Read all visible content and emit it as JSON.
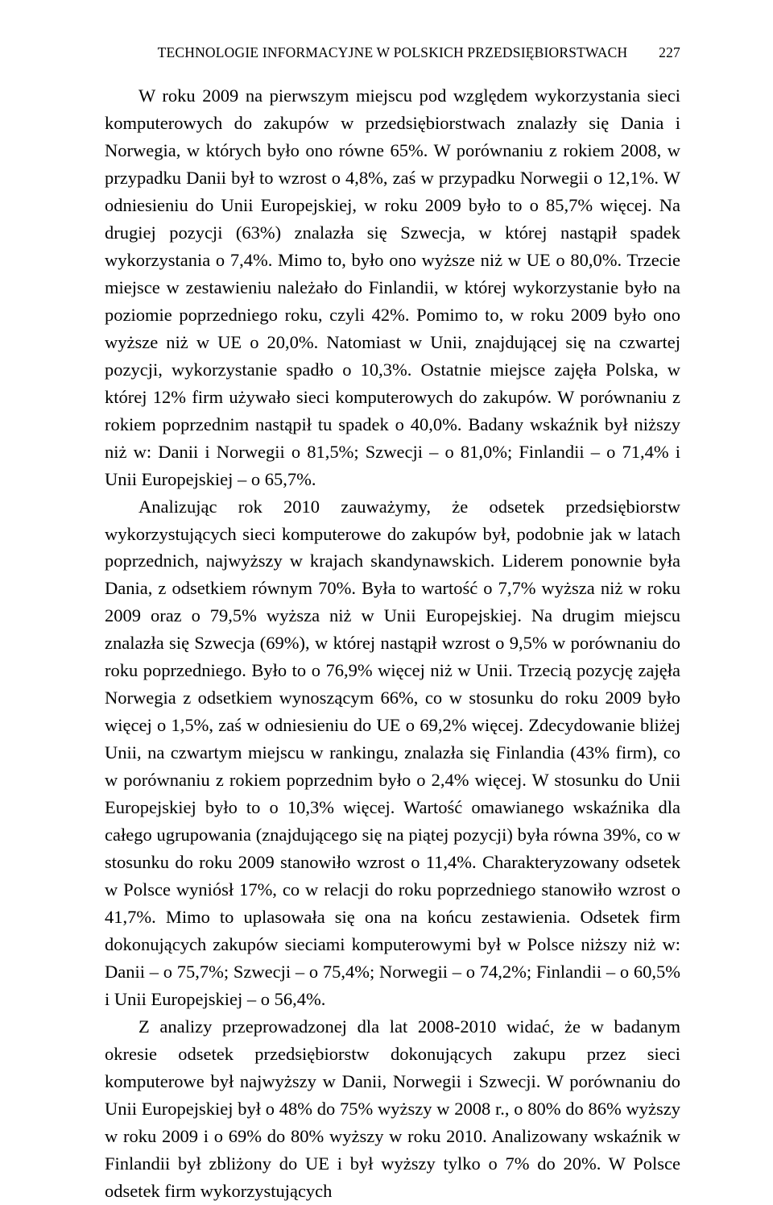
{
  "header": {
    "title": "TECHNOLOGIE INFORMACYJNE W POLSKICH PRZEDSIĘBIORSTWACH",
    "page_number": "227"
  },
  "paragraphs": {
    "p1": "W roku 2009 na pierwszym miejscu pod względem wykorzystania sieci komputerowych do zakupów w przedsiębiorstwach znalazły się Dania i Norwegia, w których było ono równe 65%. W porównaniu z rokiem 2008, w przypadku Danii był to wzrost o 4,8%, zaś w przypadku Norwegii o 12,1%. W odniesieniu do Unii Europejskiej, w roku 2009 było to o 85,7% więcej. Na drugiej pozycji (63%) znalazła się Szwecja, w której nastąpił spadek wykorzystania o 7,4%. Mimo to, było ono wyższe niż w UE o 80,0%. Trzecie miejsce w zestawieniu należało do Finlandii, w której wykorzystanie było na poziomie poprzedniego roku, czyli 42%. Pomimo to, w roku 2009 było ono wyższe niż w UE o 20,0%. Natomiast w Unii, znajdującej się na czwartej pozycji, wykorzystanie spadło o 10,3%. Ostatnie miejsce zajęła Polska, w której 12% firm używało sieci komputerowych do zakupów. W porównaniu z rokiem poprzednim nastąpił tu spadek o 40,0%. Badany wskaźnik był niższy niż w: Danii i Norwegii o 81,5%; Szwecji – o 81,0%; Finlandii – o 71,4% i Unii Europejskiej – o 65,7%.",
    "p2": "Analizując rok 2010 zauważymy, że odsetek przedsiębiorstw wykorzystujących sieci komputerowe do zakupów był, podobnie jak w latach poprzednich, najwyższy w krajach skandynawskich. Liderem ponownie była Dania, z odsetkiem równym 70%. Była to wartość o 7,7% wyższa niż w roku 2009 oraz o 79,5% wyższa niż w Unii Europejskiej. Na drugim miejscu znalazła się Szwecja (69%), w której nastąpił wzrost o 9,5% w porównaniu do roku poprzedniego. Było to o 76,9% więcej niż w Unii. Trzecią pozycję zajęła Norwegia z odsetkiem wynoszącym 66%, co w stosunku do roku 2009 było więcej o 1,5%, zaś w odniesieniu do UE o 69,2% więcej. Zdecydowanie bliżej Unii, na czwartym miejscu w rankingu, znalazła się Finlandia (43% firm), co w porównaniu z rokiem poprzednim było o 2,4% więcej. W stosunku do Unii Europejskiej było to o 10,3% więcej. Wartość omawianego wskaźnika dla całego ugrupowania (znajdującego się na piątej pozycji) była równa 39%, co w stosunku do roku 2009 stanowiło wzrost o 11,4%. Charakteryzowany odsetek w Polsce wyniósł 17%, co w relacji do roku poprzedniego stanowiło wzrost o 41,7%. Mimo to uplasowała się ona na końcu zestawienia. Odsetek firm dokonujących zakupów sieciami komputerowymi był w Polsce niższy niż w: Danii – o 75,7%; Szwecji – o 75,4%; Norwegii – o 74,2%; Finlandii – o 60,5% i Unii Europejskiej – o 56,4%.",
    "p3": "Z analizy przeprowadzonej dla lat 2008-2010 widać, że w badanym okresie odsetek przedsiębiorstw dokonujących zakupu przez sieci komputerowe był najwyższy w Danii, Norwegii i Szwecji. W porównaniu do Unii Europejskiej był o 48% do 75% wyższy w 2008 r., o 80% do 86% wyższy w roku 2009 i o 69% do 80% wyższy w roku 2010. Analizowany wskaźnik w Finlandii był zbliżony do UE i był wyższy tylko o 7% do 20%. W Polsce odsetek firm wykorzystujących"
  }
}
